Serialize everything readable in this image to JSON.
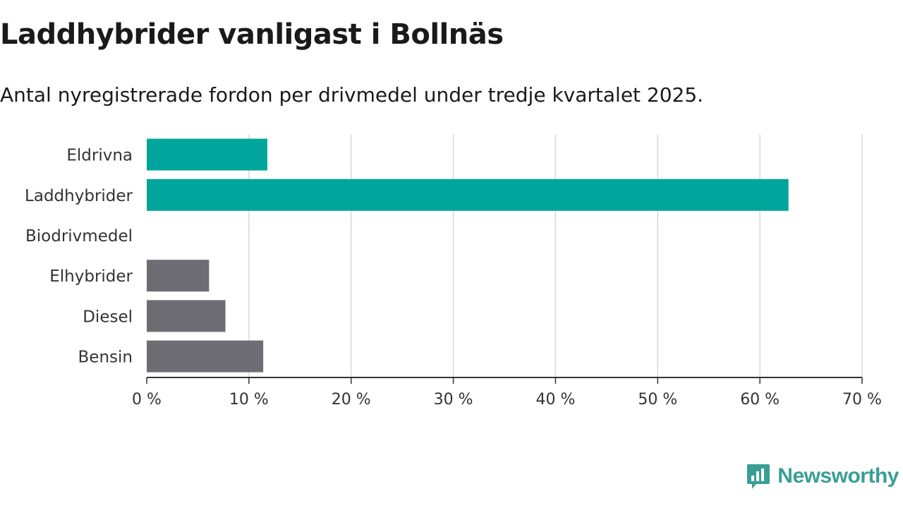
{
  "header": {
    "title": "Laddhybrider vanligast i Bollnäs",
    "subtitle": "Antal nyregistrerade fordon per drivmedel under tredje kvartalet 2025."
  },
  "brand": {
    "name": "Newsworthy",
    "icon": "newsworthy-logo-icon",
    "color": "#3a9e95"
  },
  "chart_data": {
    "type": "bar",
    "orientation": "horizontal",
    "categories": [
      "Eldrivna",
      "Laddhybrider",
      "Biodrivmedel",
      "Elhybrider",
      "Diesel",
      "Bensin"
    ],
    "values": [
      11.8,
      62.8,
      0,
      6.1,
      7.7,
      11.4
    ],
    "colors": [
      "#00a59b",
      "#00a59b",
      "#00a59b",
      "#6e6d73",
      "#6e6d73",
      "#6e6d73"
    ],
    "xlim": [
      0,
      70
    ],
    "xticks": [
      0,
      10,
      20,
      30,
      40,
      50,
      60,
      70
    ],
    "xtick_labels": [
      "0 %",
      "10 %",
      "20 %",
      "30 %",
      "40 %",
      "50 %",
      "60 %",
      "70 %"
    ],
    "grid": true,
    "xlabel": "",
    "ylabel": ""
  }
}
